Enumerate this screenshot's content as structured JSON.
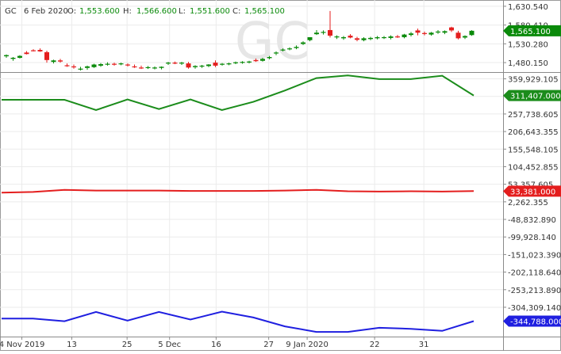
{
  "header": {
    "symbol": "GC",
    "date": "6 Feb 2020",
    "open_label": "O:",
    "open_value": "1,553.600",
    "high_label": "H:",
    "high_value": "1,566.600",
    "low_label": "L:",
    "low_value": "1,551.600",
    "close_label": "C:",
    "close_value": "1,565.100"
  },
  "watermark": "GC",
  "colors": {
    "up": "#0a8a0a",
    "down": "#e41e1e",
    "green_line": "#1b8c1b",
    "red_line": "#e41e1e",
    "blue_line": "#1f1fe0",
    "header_value": "#0a8a0a",
    "axis_text": "#333333",
    "grid": "#ebebeb",
    "watermark": "#e6e6e6"
  },
  "chart_data": [
    {
      "type": "candlestick",
      "title": "GC",
      "y_ticks": [
        "1,630.540",
        "1,580.410",
        "1,530.280",
        "1,480.150"
      ],
      "y_tick_values": [
        1630.54,
        1580.41,
        1530.28,
        1480.15
      ],
      "ylim": [
        1457,
        1643
      ],
      "current_label": "1,565.100",
      "current_value": 1565.1,
      "candles": [
        {
          "o": 1497,
          "h": 1502,
          "l": 1493,
          "c": 1500
        },
        {
          "o": 1490,
          "h": 1495,
          "l": 1485,
          "c": 1493
        },
        {
          "o": 1493,
          "h": 1500,
          "l": 1491,
          "c": 1498
        },
        {
          "o": 1507,
          "h": 1511,
          "l": 1502,
          "c": 1503
        },
        {
          "o": 1513,
          "h": 1516,
          "l": 1510,
          "c": 1512
        },
        {
          "o": 1514,
          "h": 1518,
          "l": 1509,
          "c": 1510
        },
        {
          "o": 1508,
          "h": 1512,
          "l": 1480,
          "c": 1487
        },
        {
          "o": 1482,
          "h": 1488,
          "l": 1478,
          "c": 1486
        },
        {
          "o": 1486,
          "h": 1490,
          "l": 1480,
          "c": 1483
        },
        {
          "o": 1473,
          "h": 1478,
          "l": 1469,
          "c": 1471
        },
        {
          "o": 1470,
          "h": 1475,
          "l": 1464,
          "c": 1468
        },
        {
          "o": 1463,
          "h": 1469,
          "l": 1459,
          "c": 1464
        },
        {
          "o": 1466,
          "h": 1472,
          "l": 1461,
          "c": 1470
        },
        {
          "o": 1468,
          "h": 1477,
          "l": 1466,
          "c": 1475
        },
        {
          "o": 1472,
          "h": 1479,
          "l": 1469,
          "c": 1476
        },
        {
          "o": 1476,
          "h": 1481,
          "l": 1472,
          "c": 1477
        },
        {
          "o": 1477,
          "h": 1480,
          "l": 1472,
          "c": 1475
        },
        {
          "o": 1476,
          "h": 1480,
          "l": 1473,
          "c": 1478
        },
        {
          "o": 1475,
          "h": 1478,
          "l": 1470,
          "c": 1473
        },
        {
          "o": 1470,
          "h": 1475,
          "l": 1466,
          "c": 1468
        },
        {
          "o": 1467,
          "h": 1472,
          "l": 1463,
          "c": 1466
        },
        {
          "o": 1466,
          "h": 1471,
          "l": 1463,
          "c": 1468
        },
        {
          "o": 1465,
          "h": 1470,
          "l": 1462,
          "c": 1467
        },
        {
          "o": 1466,
          "h": 1470,
          "l": 1462,
          "c": 1469
        },
        {
          "o": 1478,
          "h": 1482,
          "l": 1474,
          "c": 1480
        },
        {
          "o": 1480,
          "h": 1483,
          "l": 1476,
          "c": 1479
        },
        {
          "o": 1478,
          "h": 1482,
          "l": 1474,
          "c": 1480
        },
        {
          "o": 1478,
          "h": 1482,
          "l": 1464,
          "c": 1467
        },
        {
          "o": 1468,
          "h": 1473,
          "l": 1464,
          "c": 1471
        },
        {
          "o": 1470,
          "h": 1474,
          "l": 1466,
          "c": 1472
        },
        {
          "o": 1471,
          "h": 1476,
          "l": 1468,
          "c": 1475
        },
        {
          "o": 1480,
          "h": 1486,
          "l": 1468,
          "c": 1472
        },
        {
          "o": 1475,
          "h": 1479,
          "l": 1472,
          "c": 1477
        },
        {
          "o": 1476,
          "h": 1480,
          "l": 1473,
          "c": 1478
        },
        {
          "o": 1479,
          "h": 1483,
          "l": 1476,
          "c": 1481
        },
        {
          "o": 1480,
          "h": 1484,
          "l": 1477,
          "c": 1482
        },
        {
          "o": 1481,
          "h": 1485,
          "l": 1478,
          "c": 1483
        },
        {
          "o": 1487,
          "h": 1491,
          "l": 1482,
          "c": 1484
        },
        {
          "o": 1485,
          "h": 1493,
          "l": 1483,
          "c": 1490
        },
        {
          "o": 1492,
          "h": 1498,
          "l": 1489,
          "c": 1495
        },
        {
          "o": 1505,
          "h": 1510,
          "l": 1500,
          "c": 1507
        },
        {
          "o": 1513,
          "h": 1518,
          "l": 1510,
          "c": 1515
        },
        {
          "o": 1516,
          "h": 1521,
          "l": 1513,
          "c": 1518
        },
        {
          "o": 1519,
          "h": 1526,
          "l": 1516,
          "c": 1522
        },
        {
          "o": 1530,
          "h": 1537,
          "l": 1527,
          "c": 1534
        },
        {
          "o": 1540,
          "h": 1548,
          "l": 1537,
          "c": 1548
        },
        {
          "o": 1556,
          "h": 1567,
          "l": 1554,
          "c": 1560
        },
        {
          "o": 1560,
          "h": 1566,
          "l": 1555,
          "c": 1562
        },
        {
          "o": 1567,
          "h": 1618,
          "l": 1547,
          "c": 1552
        },
        {
          "o": 1548,
          "h": 1553,
          "l": 1543,
          "c": 1550
        },
        {
          "o": 1545,
          "h": 1551,
          "l": 1541,
          "c": 1548
        },
        {
          "o": 1552,
          "h": 1556,
          "l": 1545,
          "c": 1547
        },
        {
          "o": 1545,
          "h": 1549,
          "l": 1537,
          "c": 1541
        },
        {
          "o": 1540,
          "h": 1548,
          "l": 1537,
          "c": 1545
        },
        {
          "o": 1543,
          "h": 1549,
          "l": 1540,
          "c": 1546
        },
        {
          "o": 1545,
          "h": 1551,
          "l": 1542,
          "c": 1548
        },
        {
          "o": 1547,
          "h": 1551,
          "l": 1543,
          "c": 1548
        },
        {
          "o": 1546,
          "h": 1553,
          "l": 1542,
          "c": 1550
        },
        {
          "o": 1550,
          "h": 1554,
          "l": 1546,
          "c": 1549
        },
        {
          "o": 1548,
          "h": 1557,
          "l": 1545,
          "c": 1555
        },
        {
          "o": 1554,
          "h": 1562,
          "l": 1550,
          "c": 1558
        },
        {
          "o": 1566,
          "h": 1571,
          "l": 1553,
          "c": 1560
        },
        {
          "o": 1559,
          "h": 1563,
          "l": 1553,
          "c": 1557
        },
        {
          "o": 1555,
          "h": 1562,
          "l": 1552,
          "c": 1560
        },
        {
          "o": 1561,
          "h": 1567,
          "l": 1557,
          "c": 1563
        },
        {
          "o": 1560,
          "h": 1566,
          "l": 1556,
          "c": 1564
        },
        {
          "o": 1574,
          "h": 1576,
          "l": 1562,
          "c": 1566
        },
        {
          "o": 1560,
          "h": 1565,
          "l": 1542,
          "c": 1545
        },
        {
          "o": 1547,
          "h": 1553,
          "l": 1543,
          "c": 1551
        },
        {
          "o": 1553.6,
          "h": 1566.6,
          "l": 1551.6,
          "c": 1565.1
        }
      ]
    },
    {
      "type": "line",
      "y_ticks": [
        "359,929.105",
        "308,833.855",
        "257,738.605",
        "206,643.355",
        "155,548.105",
        "104,452.855",
        "53,357.605",
        "2,262.355",
        "-48,832.890",
        "-99,928.140",
        "-151,023.390",
        "-202,118.640",
        "-253,213.890",
        "-304,309.140"
      ],
      "y_tick_values": [
        359929.105,
        308833.855,
        257738.605,
        206643.355,
        155548.105,
        104452.855,
        53357.605,
        2262.355,
        -48832.89,
        -99928.14,
        -151023.39,
        -202118.64,
        -253213.89,
        -304309.14
      ],
      "ylim": [
        -385000,
        375000
      ],
      "series": [
        {
          "color_key": "green_line",
          "current_label": "311,407.000",
          "values": [
            299000,
            299000,
            299000,
            269000,
            300000,
            272000,
            300000,
            269000,
            293000,
            326000,
            362000,
            370000,
            359000,
            359000,
            369000,
            311407
          ]
        },
        {
          "color_key": "red_line",
          "current_label": "33,381.000",
          "values": [
            29000,
            31000,
            37000,
            35000,
            35000,
            35000,
            34000,
            34000,
            34000,
            35000,
            37000,
            33000,
            32000,
            33000,
            32000,
            33381
          ]
        },
        {
          "color_key": "blue_line",
          "current_label": "-344,788.000",
          "values": [
            -337000,
            -337000,
            -345000,
            -318000,
            -343000,
            -318000,
            -340000,
            -317000,
            -334000,
            -360000,
            -376000,
            -376000,
            -364000,
            -367000,
            -373000,
            -344788
          ]
        }
      ]
    }
  ],
  "x_axis": {
    "labels": [
      "4 Nov 2019",
      "13",
      "25",
      "5 Dec",
      "16",
      "27",
      "9 Jan 2020",
      "22",
      "31"
    ],
    "label_indices": [
      2.3,
      9.7,
      17.9,
      24.2,
      31.1,
      38.9,
      44.6,
      54.6,
      61.9
    ]
  }
}
